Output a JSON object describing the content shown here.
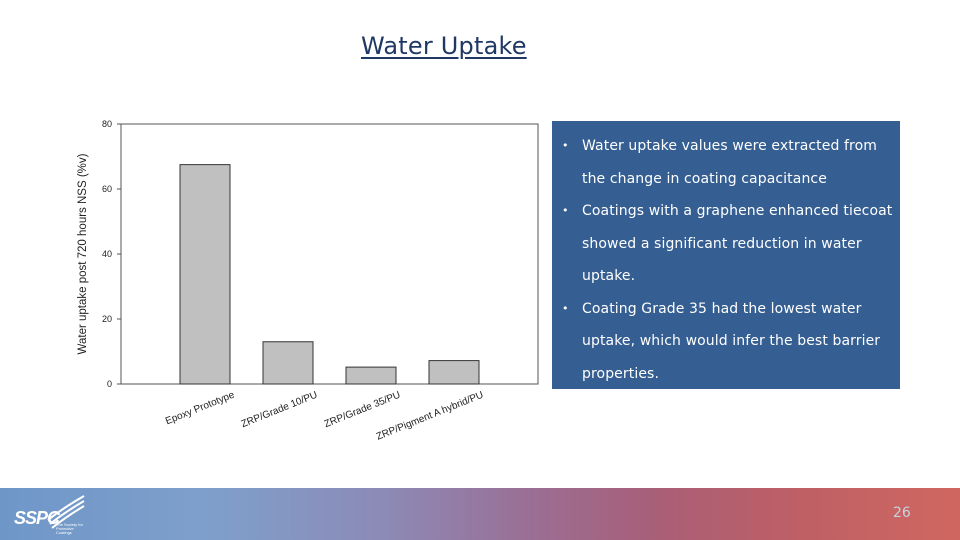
{
  "slide": {
    "title": "Water Uptake",
    "page_number": "26"
  },
  "bullets": [
    "Water uptake values were extracted from the change in coating capacitance",
    "Coatings with a graphene enhanced tiecoat showed a significant reduction in water uptake.",
    "Coating Grade 35 had the lowest water uptake, which would infer the best barrier properties."
  ],
  "logo": {
    "text": "SSPC",
    "tagline": "The Society for Protective Coatings"
  },
  "colors": {
    "title": "#1f3864",
    "bullet_box": "#355e92",
    "bar_fill": "#c0c0c0",
    "bar_stroke": "#333333"
  },
  "chart_data": {
    "type": "bar",
    "categories": [
      "Epoxy Prototype",
      "ZRP/Grade 10/PU",
      "ZRP/Grade 35/PU",
      "ZRP/Pigment A hybrid/PU"
    ],
    "values": [
      67.5,
      13,
      5.2,
      7.2
    ],
    "ylabel": "Water uptake post 720 hours NSS (%v)",
    "xlabel": "",
    "ylim": [
      0,
      80
    ],
    "yticks": [
      0,
      20,
      40,
      60,
      80
    ],
    "grid": false,
    "legend": "none"
  }
}
